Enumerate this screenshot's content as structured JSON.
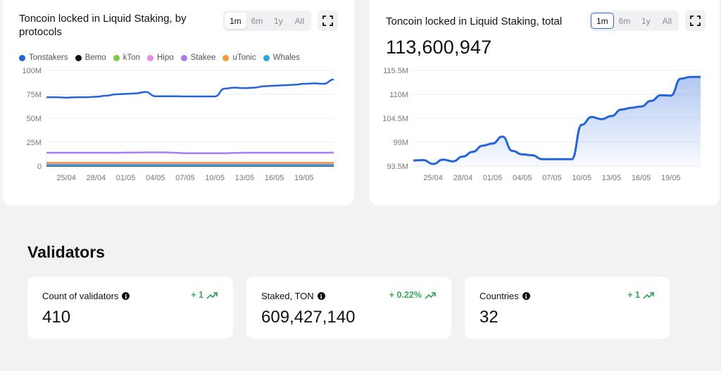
{
  "protocols_card": {
    "title_line1": "Toncoin locked in Liquid Staking, by",
    "title_line2": "protocols",
    "periods": [
      "1m",
      "6m",
      "1y",
      "All"
    ],
    "active_period": "1m",
    "legend": [
      {
        "name": "Tonstakers",
        "color": "#2563d9"
      },
      {
        "name": "Bemo",
        "color": "#111111"
      },
      {
        "name": "kTon",
        "color": "#7cc94a"
      },
      {
        "name": "Hipo",
        "color": "#f08ae8"
      },
      {
        "name": "Stakee",
        "color": "#a77df0"
      },
      {
        "name": "uTonic",
        "color": "#f59a3c"
      },
      {
        "name": "Whales",
        "color": "#2aa3e6"
      }
    ]
  },
  "total_card": {
    "title": "Toncoin locked in Liquid Staking, total",
    "value": "113,600,947",
    "periods": [
      "1m",
      "6m",
      "1y",
      "All"
    ],
    "active_period": "1m"
  },
  "chart_data": [
    {
      "type": "line",
      "title": "Toncoin locked in Liquid Staking, by protocols",
      "x": [
        "23/04",
        "24/04",
        "25/04",
        "26/04",
        "27/04",
        "28/04",
        "29/04",
        "30/04",
        "01/05",
        "02/05",
        "03/05",
        "04/05",
        "05/05",
        "06/05",
        "07/05",
        "08/05",
        "09/05",
        "10/05",
        "11/05",
        "12/05",
        "13/05",
        "14/05",
        "15/05",
        "16/05",
        "17/05",
        "18/05",
        "19/05",
        "20/05",
        "21/05",
        "22/05"
      ],
      "x_ticks": [
        "25/04",
        "28/04",
        "01/05",
        "04/05",
        "07/05",
        "10/05",
        "13/05",
        "16/05",
        "19/05"
      ],
      "y_ticks": [
        "0",
        "25M",
        "50M",
        "75M",
        "100M"
      ],
      "ylim": [
        0,
        100
      ],
      "y_unit": "M",
      "series": [
        {
          "name": "Tonstakers",
          "color": "#2563d9",
          "values": [
            72,
            72,
            71.5,
            72,
            72,
            72.5,
            73.5,
            75,
            75.5,
            76,
            77.5,
            73,
            73,
            73,
            72.8,
            72.8,
            72.8,
            72.8,
            81,
            82,
            81.5,
            82,
            83.5,
            84,
            84.5,
            85,
            86,
            86.5,
            86,
            90.5
          ]
        },
        {
          "name": "Bemo",
          "color": "#111111",
          "values": [
            0.5,
            0.5,
            0.5,
            0.5,
            0.5,
            0.5,
            0.5,
            0.5,
            0.5,
            0.5,
            0.5,
            0.5,
            0.5,
            0.5,
            0.5,
            0.5,
            0.5,
            0.5,
            0.5,
            0.5,
            0.5,
            0.5,
            0.5,
            0.5,
            0.5,
            0.5,
            0.5,
            0.5,
            0.5,
            0.5
          ]
        },
        {
          "name": "kTon",
          "color": "#7cc94a",
          "values": [
            1.5,
            1.5,
            1.5,
            1.5,
            1.5,
            1.5,
            1.5,
            1.5,
            1.5,
            1.5,
            1.5,
            1.5,
            1.5,
            1.5,
            1.5,
            1.5,
            1.5,
            1.5,
            1.5,
            1.5,
            1.5,
            1.5,
            1.5,
            1.5,
            1.5,
            1.5,
            1.5,
            1.5,
            1.5,
            1.5
          ]
        },
        {
          "name": "Hipo",
          "color": "#f08ae8",
          "values": [
            2.5,
            2.5,
            2.5,
            2.5,
            2.5,
            2.5,
            2.5,
            2.5,
            2.5,
            2.5,
            2.5,
            2.5,
            2.5,
            2.5,
            2.5,
            2.5,
            2.5,
            2.5,
            2.5,
            2.5,
            2.5,
            2.5,
            2.5,
            2.5,
            2.5,
            2.5,
            2.5,
            2.5,
            2.5,
            2.5
          ]
        },
        {
          "name": "Stakee",
          "color": "#a77df0",
          "values": [
            14,
            14,
            14,
            14,
            14,
            14,
            14,
            14,
            14.2,
            14.2,
            14.3,
            14.3,
            14.3,
            14,
            13.5,
            13.5,
            13.5,
            13.5,
            13.5,
            13.8,
            14,
            14,
            14,
            14,
            14,
            14,
            14,
            14,
            14,
            14.2
          ]
        },
        {
          "name": "uTonic",
          "color": "#f59a3c",
          "values": [
            3.5,
            3.5,
            3.5,
            3.5,
            3.5,
            3.5,
            3.5,
            3.5,
            3.5,
            3.5,
            3.5,
            3.5,
            3.5,
            3.5,
            3.5,
            3.5,
            3.5,
            3.5,
            3.5,
            3.5,
            3.5,
            3.5,
            3.5,
            3.5,
            3.5,
            3.5,
            3.5,
            3.5,
            3.5,
            3.5
          ]
        },
        {
          "name": "Whales",
          "color": "#2aa3e6",
          "values": [
            1,
            1,
            1,
            1,
            1,
            1,
            1,
            1,
            1,
            1,
            1,
            1,
            1,
            1,
            1,
            1,
            1,
            1,
            1,
            1,
            1,
            1,
            1,
            1,
            1,
            1,
            1,
            1,
            1,
            1
          ]
        }
      ]
    },
    {
      "type": "area",
      "title": "Toncoin locked in Liquid Staking, total",
      "x": [
        "23/04",
        "24/04",
        "25/04",
        "26/04",
        "27/04",
        "28/04",
        "29/04",
        "30/04",
        "01/05",
        "02/05",
        "03/05",
        "04/05",
        "05/05",
        "06/05",
        "07/05",
        "08/05",
        "09/05",
        "10/05",
        "11/05",
        "12/05",
        "13/05",
        "14/05",
        "15/05",
        "16/05",
        "17/05",
        "18/05",
        "19/05",
        "20/05",
        "21/05",
        "22/05"
      ],
      "x_ticks": [
        "25/04",
        "28/04",
        "01/05",
        "04/05",
        "07/05",
        "10/05",
        "13/05",
        "16/05",
        "19/05"
      ],
      "y_ticks": [
        "93.5M",
        "99M",
        "104.5M",
        "110M",
        "115.5M"
      ],
      "ylim": [
        93.5,
        115.5
      ],
      "y_unit": "M",
      "series": [
        {
          "name": "Total",
          "color": "#2563d9",
          "values": [
            94.8,
            94.9,
            94.0,
            95.0,
            94.6,
            95.7,
            96.8,
            98.2,
            98.7,
            100.3,
            97.0,
            96.2,
            96.0,
            95.1,
            95.1,
            95.1,
            95.1,
            103.0,
            104.8,
            104.3,
            105.0,
            106.5,
            106.9,
            107.2,
            108.5,
            109.8,
            109.7,
            113.6,
            114.0,
            114.0
          ]
        }
      ]
    }
  ],
  "validators": {
    "title": "Validators",
    "stats": [
      {
        "label": "Count of validators",
        "delta": "+ 1",
        "value": "410"
      },
      {
        "label": "Staked, TON",
        "delta": "+ 0.22%",
        "value": "609,427,140"
      },
      {
        "label": "Countries",
        "delta": "+ 1",
        "value": "32"
      }
    ],
    "info_glyph": "i"
  },
  "icons": {
    "expand": "expand-icon",
    "trend": "trend-up-icon",
    "info": "info-icon"
  }
}
